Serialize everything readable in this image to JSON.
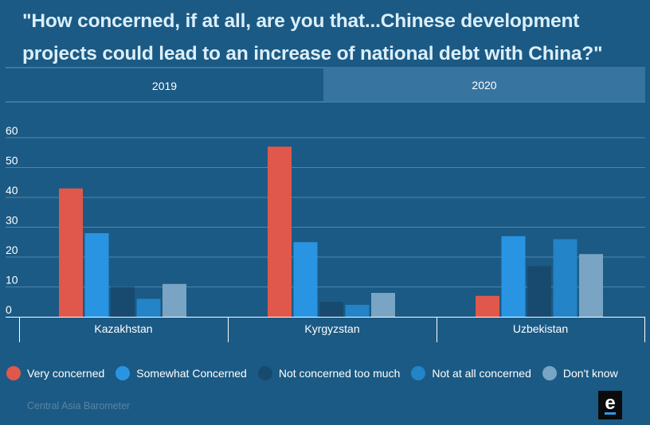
{
  "title": "\"How concerned, if at all, are you that...Chinese development projects could lead to an increase of national debt with China?\"",
  "tabs": [
    {
      "label": "2019",
      "active": true
    },
    {
      "label": "2020",
      "active": false
    }
  ],
  "chart_data": {
    "type": "bar",
    "categories": [
      "Kazakhstan",
      "Kyrgyzstan",
      "Uzbekistan"
    ],
    "series": [
      {
        "name": "Very concerned",
        "color": "#e0584b",
        "values": [
          43,
          57,
          7
        ]
      },
      {
        "name": "Somewhat Concerned",
        "color": "#2994e2",
        "values": [
          28,
          25,
          27
        ]
      },
      {
        "name": "Not concerned too much",
        "color": "#174a6e",
        "values": [
          10,
          5,
          17
        ]
      },
      {
        "name": "Not at all concerned",
        "color": "#2384c7",
        "values": [
          6,
          4,
          26
        ]
      },
      {
        "name": "Don't know",
        "color": "#7aa4c3",
        "values": [
          11,
          8,
          21
        ]
      }
    ],
    "yticks": [
      "0",
      "10",
      "20",
      "30",
      "40",
      "50",
      "60"
    ],
    "ylim": [
      0,
      60
    ],
    "grid": true,
    "legend_position": "bottom"
  },
  "source": "Central Asia Barometer",
  "colors": {
    "background": "#1b5a84",
    "tab_inactive": "#3774a0",
    "gridline": "#4f86ad"
  },
  "logo_icon": "eurasianet-e-logo"
}
